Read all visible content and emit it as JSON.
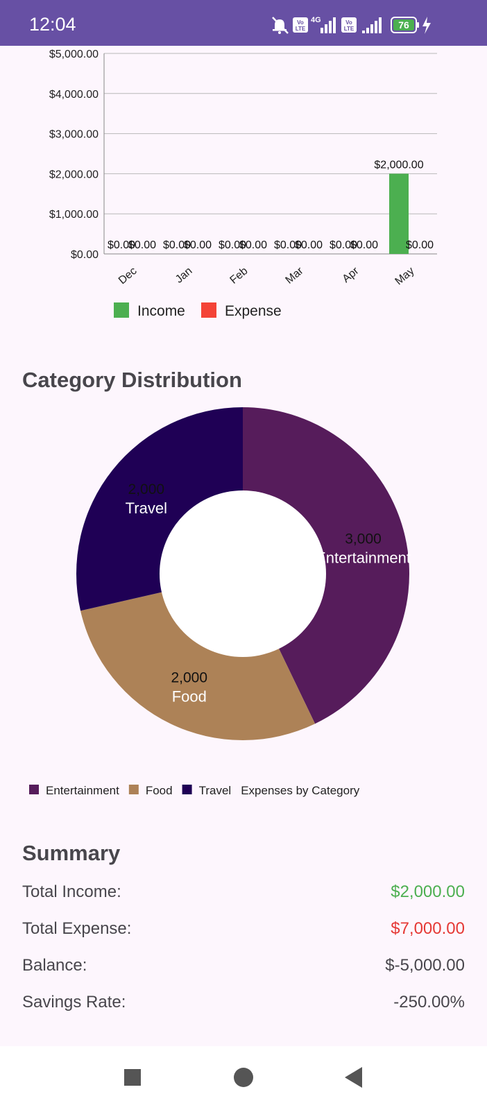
{
  "status_bar": {
    "time": "12:04",
    "battery": "76",
    "network": "4G",
    "volte_label": "Vo LTE",
    "icons": [
      "mute-icon",
      "volte-icon",
      "signal-icon",
      "volte-icon",
      "signal-icon",
      "battery-icon",
      "charging-icon"
    ]
  },
  "chart_data": [
    {
      "type": "bar",
      "categories": [
        "Dec",
        "Jan",
        "Feb",
        "Mar",
        "Apr",
        "May"
      ],
      "series": [
        {
          "name": "Income",
          "values": [
            0,
            0,
            0,
            0,
            0,
            2000
          ],
          "color": "#4CAF50"
        },
        {
          "name": "Expense",
          "values": [
            0,
            0,
            0,
            0,
            0,
            0
          ],
          "color": "#F44336"
        }
      ],
      "value_labels": {
        "income": [
          "$0.00",
          "$0.00",
          "$0.00",
          "$0.00",
          "$0.00",
          "$2,000.00"
        ],
        "expense": [
          "$0.00",
          "$0.00",
          "$0.00",
          "$0.00",
          "$0.00",
          "$0.00"
        ]
      },
      "y_ticks": [
        "$0.00",
        "$1,000.00",
        "$2,000.00",
        "$3,000.00",
        "$4,000.00",
        "$5,000.00"
      ],
      "ylim": [
        0,
        5000
      ],
      "grid": true,
      "legend": "bottom-left",
      "legend_entries": [
        "Income",
        "Expense"
      ]
    },
    {
      "type": "pie",
      "title": "Category Distribution",
      "description": "Expenses by Category",
      "slices": [
        {
          "label": "Entertainment",
          "value": 3000,
          "value_label": "3,000",
          "color": "#561C5B"
        },
        {
          "label": "Food",
          "value": 2000,
          "value_label": "2,000",
          "color": "#AD8257"
        },
        {
          "label": "Travel",
          "value": 2000,
          "value_label": "2,000",
          "color": "#1F0055"
        }
      ],
      "hole": true,
      "legend": "bottom"
    }
  ],
  "summary": {
    "title": "Summary",
    "rows": [
      {
        "label": "Total Income:",
        "value": "$2,000.00",
        "color": "#4CAF50"
      },
      {
        "label": "Total Expense:",
        "value": "$7,000.00",
        "color": "#E53935"
      },
      {
        "label": "Balance:",
        "value": "$-5,000.00",
        "color": "#48464C"
      },
      {
        "label": "Savings Rate:",
        "value": "-250.00%",
        "color": "#48464C"
      }
    ]
  },
  "nav_bar": {
    "buttons": [
      "recents-icon",
      "home-icon",
      "back-icon"
    ]
  }
}
